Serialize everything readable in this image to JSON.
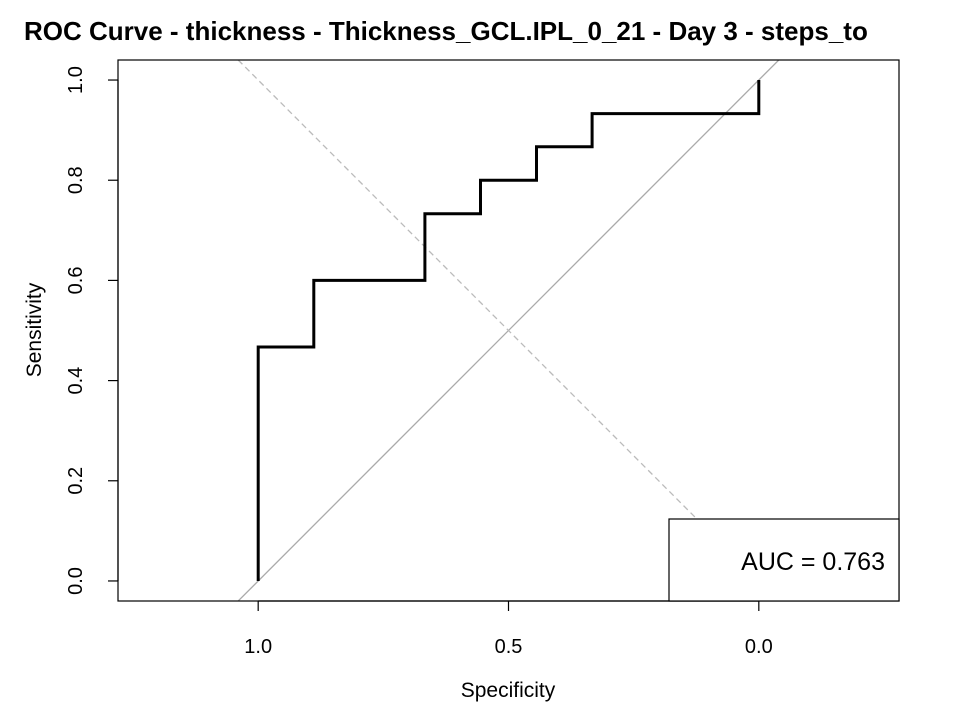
{
  "chart_data": {
    "type": "line",
    "title": "ROC Curve - thickness - Thickness_GCL.IPL_0_21 - Day 3 - steps_to",
    "xlabel": "Specificity",
    "ylabel": "Sensitivity",
    "x_reversed": true,
    "xlim": [
      1.28,
      -0.28
    ],
    "ylim": [
      -0.04,
      1.04
    ],
    "x_ticks": [
      1.0,
      0.5,
      0.0
    ],
    "x_tick_labels": [
      "1.0",
      "0.5",
      "0.0"
    ],
    "y_ticks": [
      0.0,
      0.2,
      0.4,
      0.6,
      0.8,
      1.0
    ],
    "y_tick_labels": [
      "0.0",
      "0.2",
      "0.4",
      "0.6",
      "0.8",
      "1.0"
    ],
    "grid": false,
    "series": [
      {
        "color": "#000000",
        "specificity": [
          1.0,
          1.0,
          0.889,
          0.889,
          0.667,
          0.667,
          0.556,
          0.556,
          0.444,
          0.444,
          0.333,
          0.333,
          0.0,
          0.0
        ],
        "sensitivity": [
          0.0,
          0.467,
          0.467,
          0.6,
          0.6,
          0.733,
          0.733,
          0.8,
          0.8,
          0.867,
          0.867,
          0.933,
          0.933,
          1.0
        ]
      }
    ],
    "reference_lines": [
      {
        "kind": "diagonal",
        "style": "solid",
        "color": "#aaaaaa"
      },
      {
        "kind": "anti-diagonal",
        "style": "dashed",
        "color": "#bbbbbb"
      }
    ],
    "annotation": "AUC = 0.763",
    "annotation_placement": "bottom-right"
  }
}
